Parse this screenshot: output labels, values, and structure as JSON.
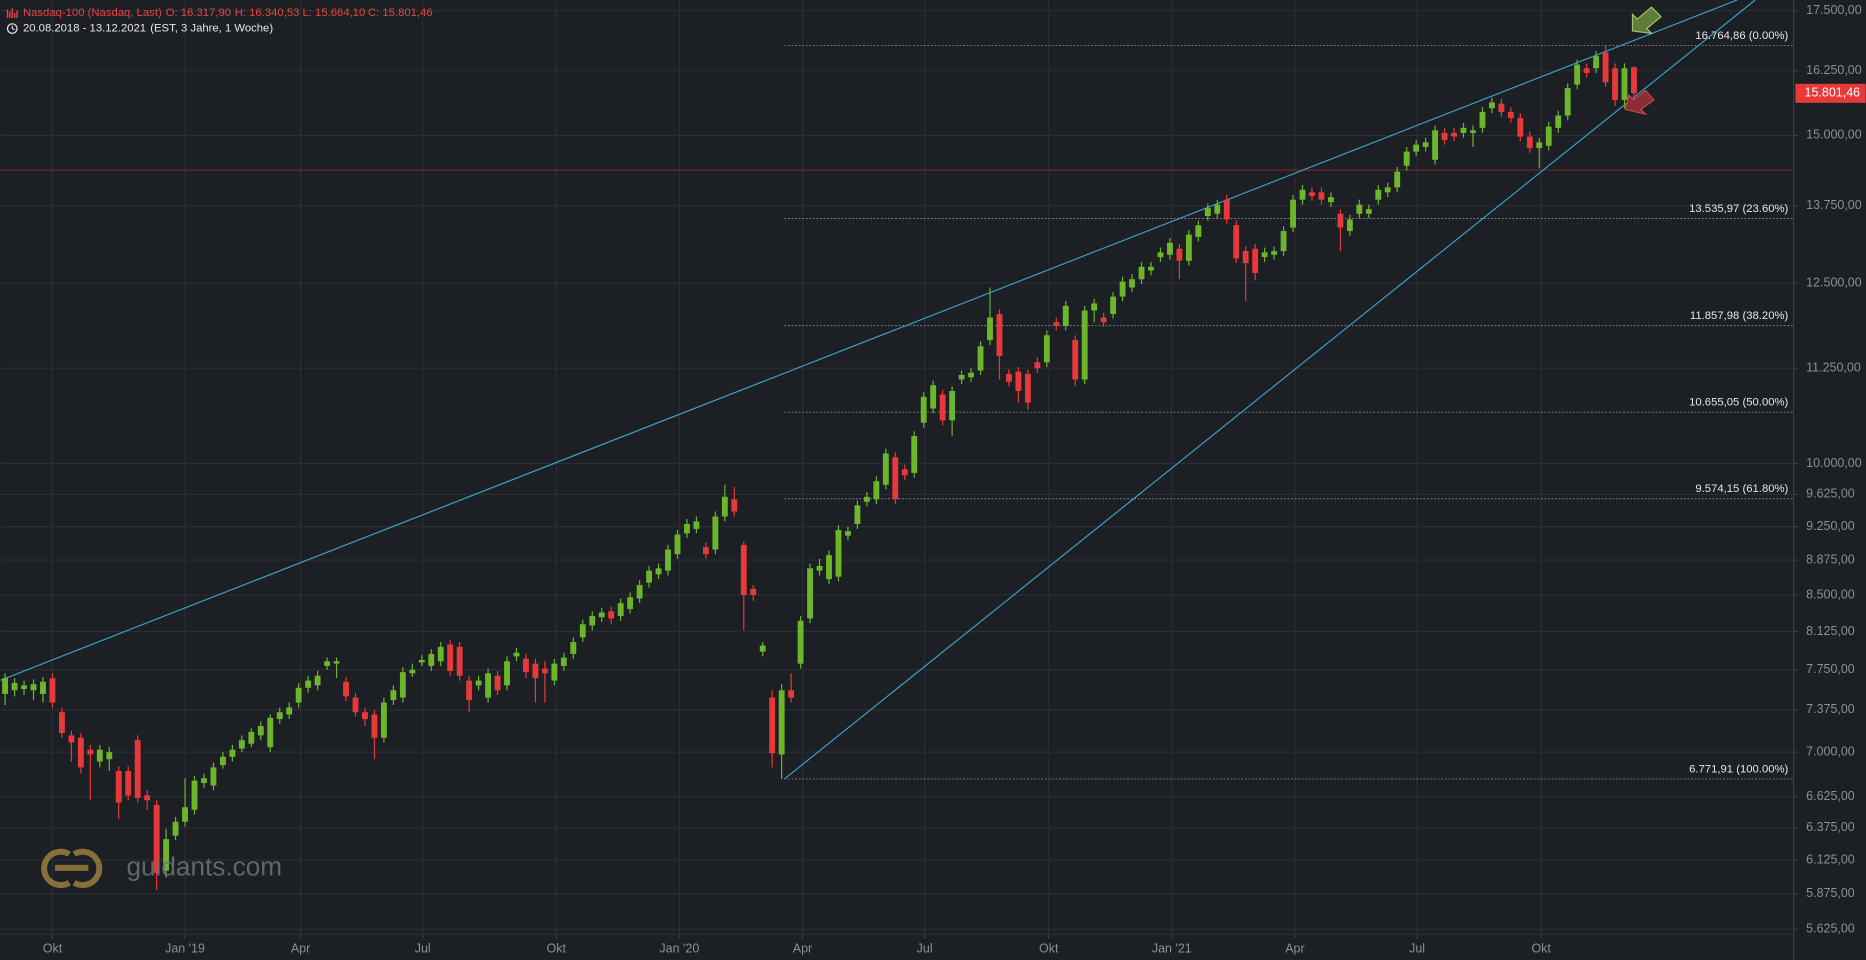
{
  "header": {
    "instrument": "Nasdaq-100 (Nasdaq, Last)",
    "ohlc": [
      "O: 16.317,90",
      "H: 16.340,53",
      "L: 15.664,10",
      "C: 15.801,46"
    ],
    "range": "20.08.2018 - 13.12.2021",
    "meta": "(EST, 3 Jahre, 1 Woche)"
  },
  "watermark": "guidants.com",
  "chart_data": {
    "type": "candlestick",
    "log_scale": true,
    "grid": true,
    "up_color": "#6db52b",
    "down_color": "#e8393a",
    "open": [
      7522,
      7556,
      7568,
      7556,
      7522,
      7670,
      7354,
      7146,
      7125,
      7021,
      6919,
      6939,
      6838,
      6838,
      7104,
      6636,
      6558,
      6046,
      6313,
      6423,
      6519,
      6737,
      6717,
      6889,
      6960,
      7031,
      7073,
      7146,
      7042,
      7292,
      7333,
      7442,
      7579,
      7602,
      7786,
      7809,
      7636,
      7488,
      7354,
      7333,
      7125,
      7465,
      7488,
      7716,
      7821,
      7786,
      7832,
      7996,
      7973,
      7647,
      7602,
      7488,
      7693,
      7602,
      7879,
      7856,
      7809,
      7762,
      7647,
      7786,
      7903,
      8067,
      8186,
      8270,
      8331,
      8282,
      8355,
      8464,
      8631,
      8721,
      8760,
      8940,
      9173,
      9224,
      9018,
      8992,
      9366,
      9568,
      9044,
      8566,
      7926,
      7488,
      6980,
      7556,
      7809,
      8258,
      8760,
      8669,
      8695,
      9147,
      9280,
      9539,
      9568,
      9741,
      10078,
      9928,
      9885,
      10517,
      10704,
      10891,
      10548,
      11094,
      11125,
      11219,
      11647,
      12030,
      11172,
      11203,
      11172,
      11333,
      11333,
      11908,
      11856,
      11647,
      11094,
      12082,
      11978,
      12030,
      12291,
      12430,
      12558,
      12694,
      12906,
      12944,
      13040,
      12848,
      13232,
      13578,
      13616,
      13855,
      13424,
      13002,
      13040,
      12906,
      12944,
      13002,
      13386,
      13855,
      13982,
      13982,
      13813,
      13616,
      13328,
      13616,
      13616,
      13855,
      13982,
      14067,
      14449,
      14703,
      14788,
      14555,
      15046,
      15046,
      15046,
      15046,
      15141,
      15511,
      15603,
      15442,
      15326,
      14979,
      14767,
      14809,
      15141,
      15373,
      15973,
      16299,
      16299,
      16618,
      16299,
      15673,
      16317.9
    ],
    "high": [
      7716,
      7670,
      7647,
      7659,
      7682,
      7716,
      7397,
      7188,
      7167,
      7063,
      7063,
      7042,
      6879,
      6879,
      7146,
      6677,
      6596,
      6366,
      6462,
      6778,
      6798,
      6818,
      6909,
      7000,
      7063,
      7146,
      7208,
      7271,
      7333,
      7397,
      7442,
      7625,
      7693,
      7739,
      7868,
      7868,
      7682,
      7533,
      7397,
      7375,
      7488,
      7602,
      7774,
      7809,
      7891,
      7950,
      8020,
      8043,
      8020,
      7693,
      7693,
      7762,
      7739,
      7879,
      7961,
      7903,
      7856,
      7832,
      7856,
      7915,
      8067,
      8246,
      8331,
      8367,
      8379,
      8464,
      8526,
      8657,
      8811,
      8837,
      9044,
      9211,
      9338,
      9366,
      9069,
      9424,
      9741,
      9712,
      9082,
      8605,
      8020,
      7556,
      7613,
      7716,
      8282,
      8837,
      8889,
      8979,
      9266,
      9250,
      9554,
      9654,
      9842,
      10187,
      10140,
      9986,
      10407,
      10922,
      11078,
      10954,
      11000,
      11218,
      11250,
      11630,
      12430,
      12100,
      11234,
      11265,
      11234,
      11403,
      11787,
      11978,
      12222,
      11717,
      12152,
      12256,
      12048,
      12361,
      12598,
      12637,
      12829,
      12829,
      13059,
      13213,
      13117,
      13347,
      13501,
      13792,
      13855,
      13940,
      13501,
      13078,
      13117,
      13059,
      13078,
      13405,
      13940,
      14110,
      14067,
      14067,
      13982,
      13693,
      13597,
      13855,
      13771,
      14110,
      14152,
      14428,
      14788,
      14915,
      14958,
      15187,
      15141,
      15141,
      15234,
      15187,
      15534,
      15719,
      15696,
      15534,
      15419,
      15072,
      14958,
      15257,
      15465,
      15996,
      16471,
      16397,
      16643,
      16764.86,
      16397,
      16397,
      16340.53
    ],
    "low": [
      7419,
      7499,
      7511,
      7465,
      7442,
      7397,
      7125,
      6919,
      6818,
      6596,
      6869,
      6838,
      6443,
      6596,
      6577,
      6519,
      5904,
      5993,
      6277,
      6385,
      6481,
      6697,
      6677,
      6859,
      6919,
      7000,
      7042,
      7104,
      7000,
      7250,
      7292,
      7397,
      7533,
      7556,
      7750,
      7670,
      7454,
      7313,
      7229,
      6939,
      7083,
      7419,
      7442,
      7682,
      7786,
      7739,
      7786,
      7693,
      7647,
      7354,
      7556,
      7442,
      7511,
      7556,
      7832,
      7670,
      7442,
      7442,
      7602,
      7739,
      7856,
      8020,
      8137,
      8222,
      8198,
      8234,
      8307,
      8415,
      8579,
      8669,
      8708,
      8889,
      9121,
      9173,
      8889,
      8940,
      9309,
      9366,
      8137,
      8440,
      7879,
      6869,
      6771.91,
      7442,
      7762,
      8210,
      8708,
      8618,
      8643,
      9095,
      9224,
      9482,
      9510,
      9683,
      9510,
      9798,
      9827,
      10454,
      10642,
      10486,
      10345,
      11032,
      11063,
      11156,
      11578,
      11094,
      11000,
      10782,
      10688,
      11187,
      11265,
      11787,
      11787,
      11000,
      11032,
      11908,
      11839,
      11961,
      12222,
      12361,
      12483,
      12618,
      12829,
      12867,
      12558,
      12771,
      13155,
      13501,
      13539,
      13443,
      12810,
      12222,
      12539,
      12829,
      12867,
      12925,
      13309,
      13771,
      13834,
      13771,
      13731,
      13002,
      13251,
      13539,
      13539,
      13771,
      13898,
      13982,
      14364,
      14618,
      14703,
      14470,
      14830,
      14894,
      14958,
      14788,
      15046,
      15419,
      15349,
      15234,
      14894,
      14682,
      14406,
      14724,
      15046,
      15280,
      15881,
      16111,
      16204,
      15927,
      15557,
      15511,
      15664.1
    ],
    "close": [
      7670,
      7625,
      7602,
      7613,
      7636,
      7442,
      7167,
      7083,
      6869,
      6980,
      7021,
      7000,
      6577,
      6636,
      6615,
      6596,
      6028,
      6286,
      6423,
      6539,
      6758,
      6778,
      6869,
      6960,
      7021,
      7104,
      7177,
      7229,
      7302,
      7354,
      7397,
      7579,
      7647,
      7693,
      7832,
      7832,
      7499,
      7354,
      7292,
      7125,
      7442,
      7556,
      7727,
      7750,
      7844,
      7903,
      7973,
      7739,
      7693,
      7465,
      7647,
      7716,
      7556,
      7832,
      7915,
      7727,
      7670,
      7716,
      7809,
      7868,
      8020,
      8198,
      8282,
      8319,
      8258,
      8415,
      8476,
      8605,
      8760,
      8785,
      8992,
      9160,
      9280,
      9309,
      8940,
      9366,
      9597,
      9424,
      8500,
      8500,
      7985,
      6990,
      7556,
      7488,
      8234,
      8785,
      8811,
      8928,
      9211,
      9198,
      9496,
      9597,
      9784,
      10125,
      9568,
      9856,
      10345,
      10860,
      11016,
      10548,
      10938,
      11156,
      11187,
      11560,
      11978,
      11420,
      11063,
      10938,
      10782,
      11250,
      11717,
      11856,
      12152,
      11094,
      12082,
      12187,
      11908,
      12291,
      12520,
      12558,
      12752,
      12752,
      12982,
      13136,
      12848,
      13270,
      13424,
      13712,
      13771,
      13520,
      12886,
      12810,
      12656,
      12982,
      13002,
      13328,
      13855,
      14025,
      13919,
      13855,
      13898,
      13386,
      13520,
      13771,
      13693,
      14025,
      14067,
      14343,
      14703,
      14830,
      14873,
      15095,
      14915,
      14979,
      15141,
      15095,
      15442,
      15626,
      15442,
      15326,
      14979,
      14767,
      14873,
      15164,
      15373,
      15904,
      16373,
      16204,
      16545,
      16019,
      15673,
      16299,
      15801.46
    ],
    "xlim": [
      -0.5,
      188.8
    ],
    "xticks": [
      {
        "value": 5,
        "label": "Okt"
      },
      {
        "value": 19,
        "label": "Jan '19"
      },
      {
        "value": 31.2,
        "label": "Apr"
      },
      {
        "value": 44.1,
        "label": "Jul"
      },
      {
        "value": 58.2,
        "label": "Okt"
      },
      {
        "value": 71.2,
        "label": "Jan '20"
      },
      {
        "value": 84.2,
        "label": "Apr"
      },
      {
        "value": 97.1,
        "label": "Jul"
      },
      {
        "value": 110.2,
        "label": "Okt"
      },
      {
        "value": 123.2,
        "label": "Jan '21"
      },
      {
        "value": 136.2,
        "label": "Apr"
      },
      {
        "value": 149.1,
        "label": "Jul"
      },
      {
        "value": 162.2,
        "label": "Okt"
      }
    ],
    "ylim": [
      5592,
      17733
    ],
    "yticks": [
      {
        "value": 17500,
        "label": "17.500,00"
      },
      {
        "value": 16250,
        "label": "16.250,00"
      },
      {
        "value": 15000,
        "label": "15.000,00"
      },
      {
        "value": 13750,
        "label": "13.750,00"
      },
      {
        "value": 12500,
        "label": "12.500,00"
      },
      {
        "value": 11250,
        "label": "11.250,00"
      },
      {
        "value": 10000,
        "label": "10.000,00"
      },
      {
        "value": 9625,
        "label": "9.625,00"
      },
      {
        "value": 9250,
        "label": "9.250,00"
      },
      {
        "value": 8875,
        "label": "8.875,00"
      },
      {
        "value": 8500,
        "label": "8.500,00"
      },
      {
        "value": 8125,
        "label": "8.125,00"
      },
      {
        "value": 7750,
        "label": "7.750,00"
      },
      {
        "value": 7375,
        "label": "7.375,00"
      },
      {
        "value": 7000,
        "label": "7.000,00"
      },
      {
        "value": 6625,
        "label": "6.625,00"
      },
      {
        "value": 6375,
        "label": "6.375,00"
      },
      {
        "value": 6125,
        "label": "6.125,00"
      },
      {
        "value": 5875,
        "label": "5.875,00"
      },
      {
        "value": 5625,
        "label": "5.625,00"
      }
    ],
    "last_price": {
      "value": 15801.46,
      "label": "15.801,46",
      "color": "#e8393a"
    },
    "fib_levels": {
      "x_start": 82.3,
      "color": "#7d828a",
      "levels": [
        {
          "value": 16764.86,
          "label": "16.764,86 (0.00%)"
        },
        {
          "value": 13535.97,
          "label": "13.535,97 (23.60%)"
        },
        {
          "value": 11857.98,
          "label": "11.857,98 (38.20%)"
        },
        {
          "value": 10655.05,
          "label": "10.655,05 (50.00%)"
        },
        {
          "value": 9574.15,
          "label": "9.574,15 (61.80%)"
        },
        {
          "value": 6771.91,
          "label": "6.771,91 (100.00%)"
        }
      ]
    },
    "trendlines": [
      {
        "color": "#3a9fc9",
        "x": [
          -0.5,
          182.9
        ],
        "y": [
          7650,
          17733
        ]
      },
      {
        "color": "#3a9fc9",
        "x": [
          82.3,
          184.8
        ],
        "y": [
          6771.91,
          17733
        ]
      }
    ],
    "hline": {
      "value": 14370,
      "color": "#6b2626"
    }
  }
}
